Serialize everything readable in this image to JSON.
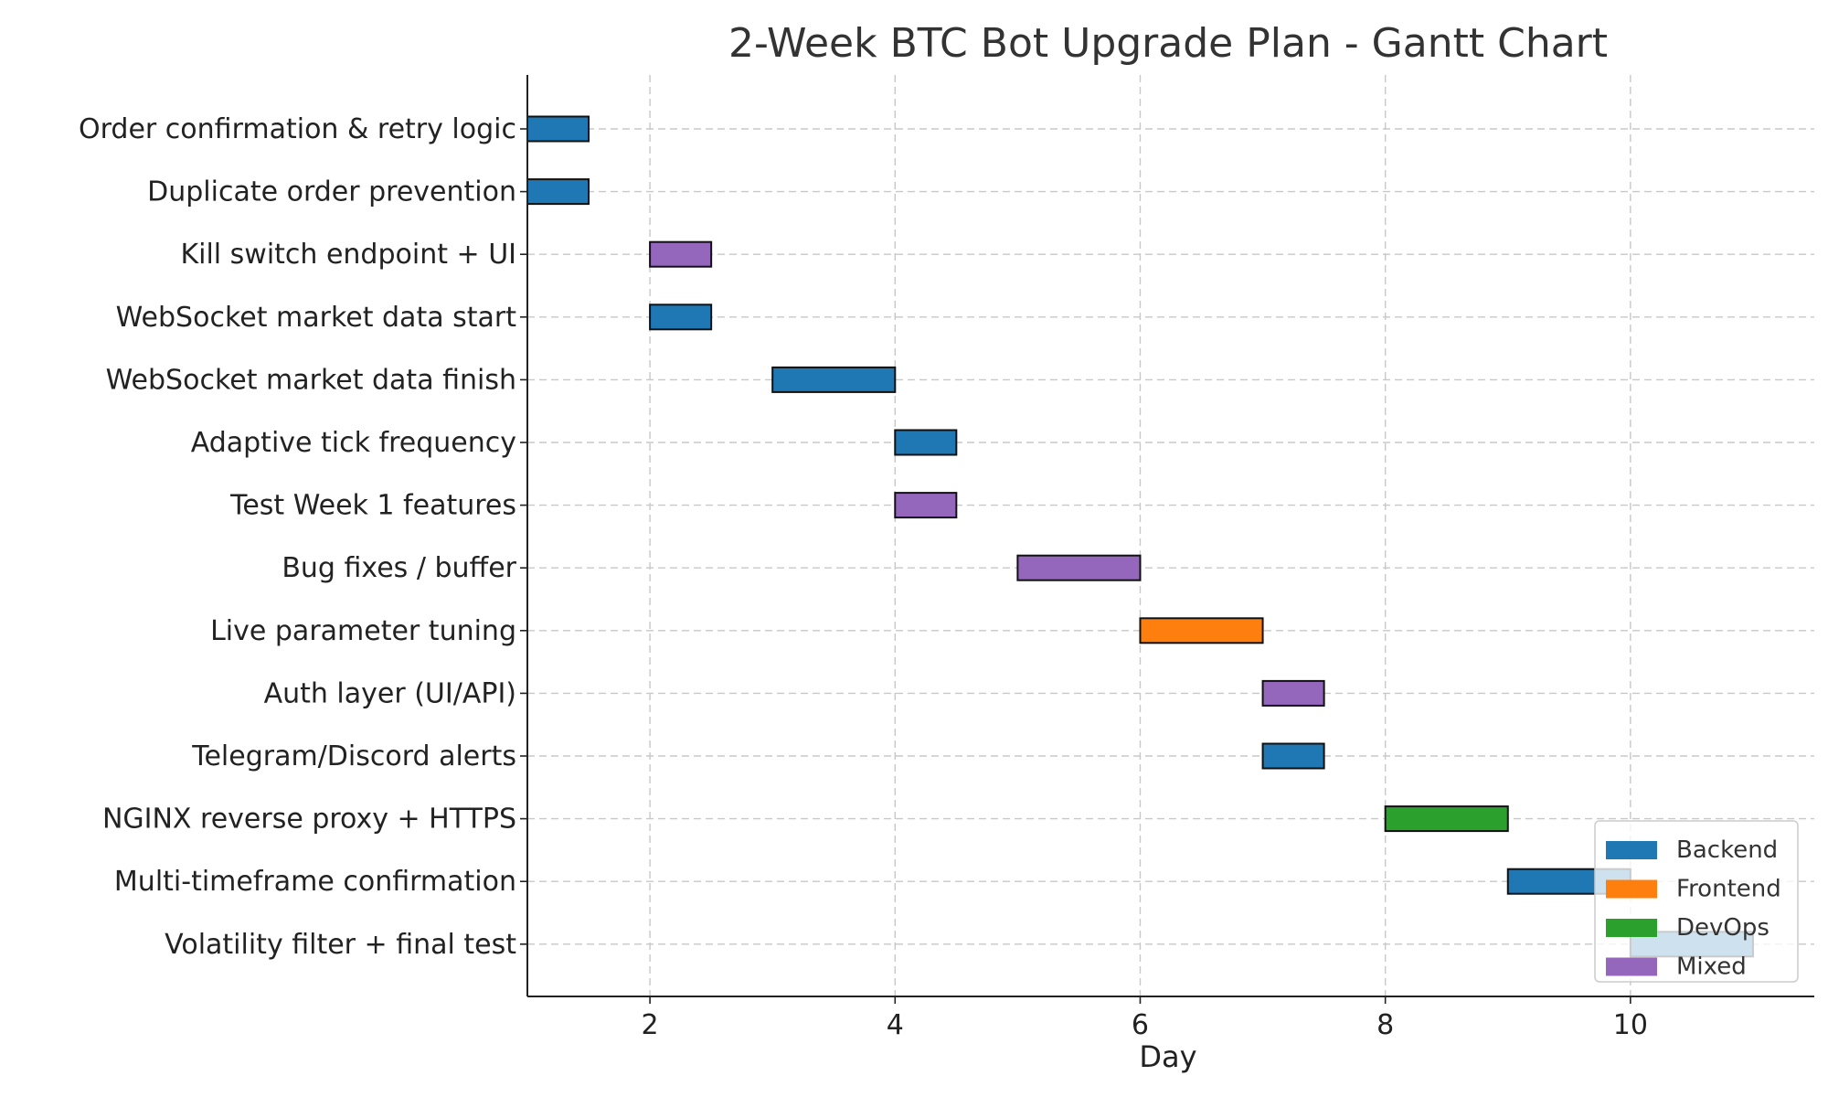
{
  "chart_data": {
    "type": "gantt",
    "title": "2-Week BTC Bot Upgrade Plan - Gantt Chart",
    "xlabel": "Day",
    "ylabel": "",
    "xlim": [
      1,
      11.5
    ],
    "xticks": [
      2,
      4,
      6,
      8,
      10
    ],
    "grid": true,
    "legend_position": "bottom-right",
    "colors": {
      "Backend": "#1f77b4",
      "Frontend": "#ff7f0e",
      "DevOps": "#2ca02c",
      "Mixed": "#9467bd"
    },
    "legend": [
      "Backend",
      "Frontend",
      "DevOps",
      "Mixed"
    ],
    "tasks": [
      {
        "name": "Order confirmation & retry logic",
        "start": 1.0,
        "end": 1.5,
        "category": "Backend"
      },
      {
        "name": "Duplicate order prevention",
        "start": 1.0,
        "end": 1.5,
        "category": "Backend"
      },
      {
        "name": "Kill switch endpoint + UI",
        "start": 2.0,
        "end": 2.5,
        "category": "Mixed"
      },
      {
        "name": "WebSocket market data start",
        "start": 2.0,
        "end": 2.5,
        "category": "Backend"
      },
      {
        "name": "WebSocket market data finish",
        "start": 3.0,
        "end": 4.0,
        "category": "Backend"
      },
      {
        "name": "Adaptive tick frequency",
        "start": 4.0,
        "end": 4.5,
        "category": "Backend"
      },
      {
        "name": "Test Week 1 features",
        "start": 4.0,
        "end": 4.5,
        "category": "Mixed"
      },
      {
        "name": "Bug fixes / buffer",
        "start": 5.0,
        "end": 6.0,
        "category": "Mixed"
      },
      {
        "name": "Live parameter tuning",
        "start": 6.0,
        "end": 7.0,
        "category": "Frontend"
      },
      {
        "name": "Auth layer (UI/API)",
        "start": 7.0,
        "end": 7.5,
        "category": "Mixed"
      },
      {
        "name": "Telegram/Discord alerts",
        "start": 7.0,
        "end": 7.5,
        "category": "Backend"
      },
      {
        "name": "NGINX reverse proxy + HTTPS",
        "start": 8.0,
        "end": 9.0,
        "category": "DevOps"
      },
      {
        "name": "Multi-timeframe confirmation",
        "start": 9.0,
        "end": 10.0,
        "category": "Backend"
      },
      {
        "name": "Volatility filter + final test",
        "start": 10.0,
        "end": 11.0,
        "category": "Backend"
      }
    ]
  }
}
